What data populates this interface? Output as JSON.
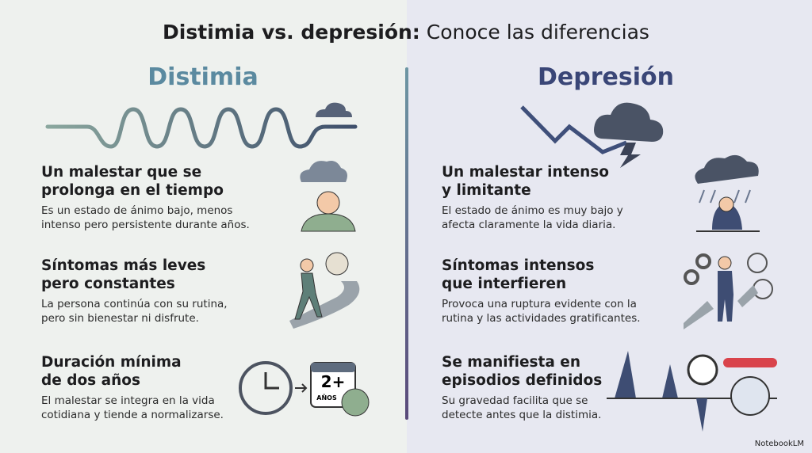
{
  "header": {
    "title_bold": "Distimia vs. depresión:",
    "title_rest": "Conoce las diferencias"
  },
  "left": {
    "heading": "Distimia",
    "items": [
      {
        "title": [
          "Un malestar que se",
          "prolonga en el tiempo"
        ],
        "text": [
          "Es un estado de ánimo bajo, menos",
          "intenso pero persistente durante años."
        ]
      },
      {
        "title": [
          "Síntomas más leves",
          "pero constantes"
        ],
        "text": [
          "La persona continúa con su rutina,",
          "pero sin bienestar ni disfrute."
        ]
      },
      {
        "title": [
          "Duración mínima",
          "de dos años"
        ],
        "text": [
          "El malestar se integra en la vida",
          "cotidiana y tiende a normalizarse."
        ]
      }
    ],
    "calendar": {
      "number": "2+",
      "unit": "AÑOS"
    }
  },
  "right": {
    "heading": "Depresión",
    "items": [
      {
        "title": [
          "Un malestar intenso",
          "y limitante"
        ],
        "text": [
          "El estado de ánimo es muy bajo y",
          "afecta claramente la vida diaria."
        ]
      },
      {
        "title": [
          "Síntomas intensos",
          "que interfieren"
        ],
        "text": [
          "Provoca una ruptura evidente con la",
          "rutina y las actividades gratificantes."
        ]
      },
      {
        "title": [
          "Se manifiesta en",
          "episodios definidos"
        ],
        "text": [
          "Su gravedad facilita que se",
          "detecte antes que la distimia."
        ]
      }
    ]
  },
  "footer": {
    "brand": "NotebookLM"
  }
}
